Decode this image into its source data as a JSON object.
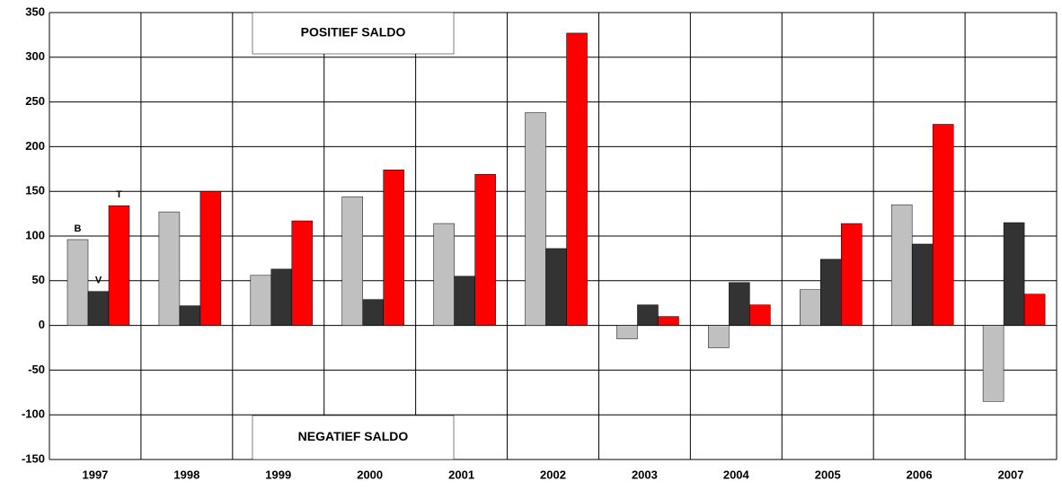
{
  "chart_data": {
    "type": "bar",
    "categories": [
      "1997",
      "1998",
      "1999",
      "2000",
      "2001",
      "2002",
      "2003",
      "2004",
      "2005",
      "2006",
      "2007"
    ],
    "series": [
      {
        "name": "B",
        "color": "#c0c0c0",
        "values": [
          96,
          127,
          56,
          144,
          114,
          238,
          -15,
          -25,
          40,
          135,
          -85
        ]
      },
      {
        "name": "V",
        "color": "#333333",
        "values": [
          38,
          22,
          63,
          29,
          55,
          86,
          23,
          48,
          74,
          91,
          115
        ]
      },
      {
        "name": "T",
        "color": "#ff0000",
        "values": [
          134,
          150,
          117,
          174,
          169,
          327,
          10,
          23,
          114,
          225,
          35
        ]
      }
    ],
    "annotations": [
      "POSITIEF SALDO",
      "NEGATIEF SALDO"
    ],
    "ylim": [
      -150,
      350
    ],
    "yticks": [
      -150,
      -100,
      -50,
      0,
      50,
      100,
      150,
      200,
      250,
      300,
      350
    ],
    "grid": true
  }
}
